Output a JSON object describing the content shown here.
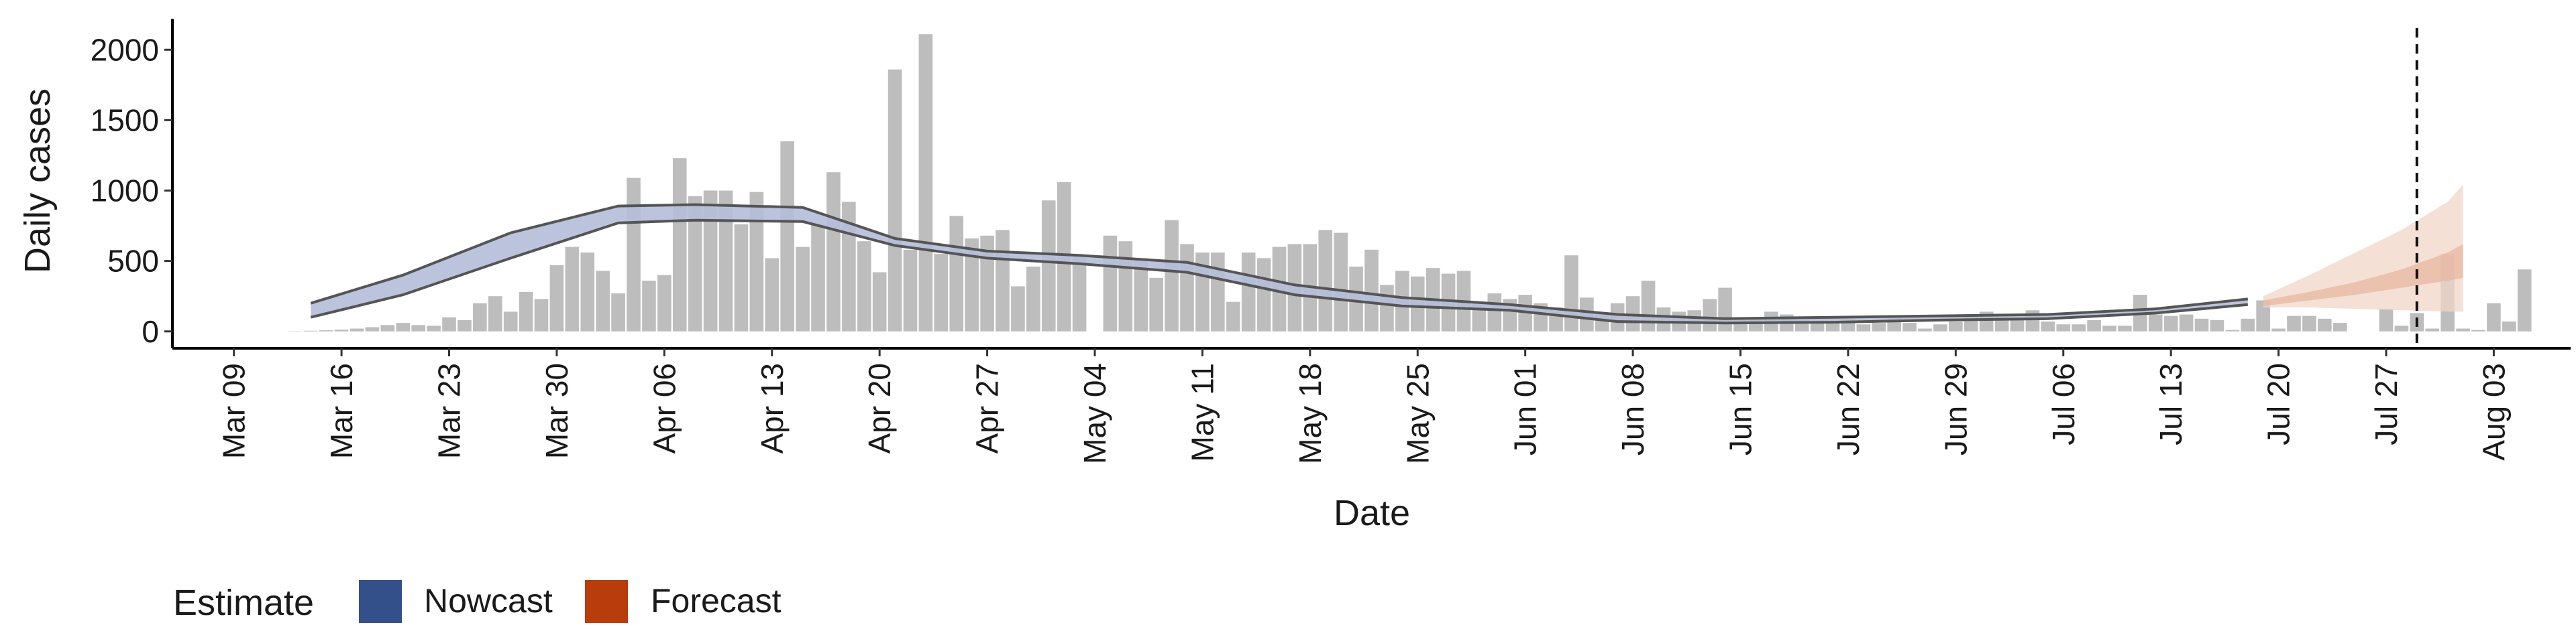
{
  "chart_data": {
    "type": "bar",
    "xlabel": "Date",
    "ylabel": "Daily cases",
    "ylim": [
      -120,
      2220
    ],
    "xlim": [
      "2020-03-05",
      "2020-08-08"
    ],
    "yticks": [
      0,
      500,
      1000,
      1500,
      2000
    ],
    "xticks": [
      "2020-03-09",
      "2020-03-16",
      "2020-03-23",
      "2020-03-30",
      "2020-04-06",
      "2020-04-13",
      "2020-04-20",
      "2020-04-27",
      "2020-05-04",
      "2020-05-11",
      "2020-05-18",
      "2020-05-25",
      "2020-06-01",
      "2020-06-08",
      "2020-06-15",
      "2020-06-22",
      "2020-06-29",
      "2020-07-06",
      "2020-07-13",
      "2020-07-20",
      "2020-07-27",
      "2020-08-03"
    ],
    "xtick_labels": [
      "Mar 09",
      "Mar 16",
      "Mar 23",
      "Mar 30",
      "Apr 06",
      "Apr 13",
      "Apr 20",
      "Apr 27",
      "May 04",
      "May 11",
      "May 18",
      "May 25",
      "Jun 01",
      "Jun 08",
      "Jun 15",
      "Jun 22",
      "Jun 29",
      "Jul 06",
      "Jul 13",
      "Jul 20",
      "Jul 27",
      "Aug 03"
    ],
    "bar_start": "2020-03-13",
    "daily_cases": [
      2,
      5,
      8,
      12,
      20,
      30,
      45,
      60,
      45,
      40,
      100,
      80,
      200,
      250,
      140,
      280,
      230,
      470,
      600,
      560,
      430,
      270,
      1090,
      360,
      400,
      1230,
      960,
      1000,
      1000,
      760,
      990,
      520,
      1350,
      600,
      760,
      1130,
      920,
      640,
      420,
      1860,
      580,
      2110,
      550,
      820,
      660,
      680,
      720,
      320,
      460,
      930,
      1060,
      540,
      0,
      680,
      640,
      520,
      380,
      790,
      620,
      560,
      560,
      210,
      560,
      520,
      600,
      620,
      620,
      720,
      700,
      460,
      580,
      330,
      430,
      390,
      450,
      410,
      430,
      210,
      270,
      230,
      260,
      200,
      170,
      540,
      240,
      130,
      200,
      250,
      360,
      170,
      140,
      150,
      230,
      310,
      100,
      90,
      140,
      120,
      80,
      60,
      70,
      90,
      50,
      60,
      110,
      60,
      20,
      50,
      70,
      110,
      140,
      100,
      80,
      150,
      70,
      50,
      50,
      80,
      40,
      40,
      260,
      120,
      110,
      120,
      90,
      80,
      10,
      90,
      220,
      20,
      110,
      110,
      90,
      60,
      0,
      0,
      160,
      40,
      130,
      20,
      550,
      20,
      10,
      200,
      70,
      440,
      0,
      0,
      0,
      0,
      0,
      0,
      0
    ],
    "series": [
      {
        "name": "Nowcast",
        "x": [
          "2020-03-14",
          "2020-03-20",
          "2020-03-27",
          "2020-04-03",
          "2020-04-08",
          "2020-04-15",
          "2020-04-21",
          "2020-04-27",
          "2020-05-03",
          "2020-05-10",
          "2020-05-17",
          "2020-05-24",
          "2020-05-31",
          "2020-06-07",
          "2020-06-14",
          "2020-06-21",
          "2020-06-28",
          "2020-07-05",
          "2020-07-12",
          "2020-07-18"
        ],
        "lower": [
          100,
          260,
          520,
          770,
          790,
          780,
          610,
          520,
          480,
          420,
          260,
          180,
          150,
          70,
          60,
          65,
          80,
          90,
          130,
          190
        ],
        "upper": [
          200,
          400,
          700,
          890,
          900,
          880,
          660,
          570,
          540,
          490,
          330,
          240,
          190,
          120,
          90,
          100,
          110,
          120,
          160,
          230
        ]
      },
      {
        "name": "Forecast",
        "x": [
          "2020-07-19",
          "2020-07-22",
          "2020-07-25",
          "2020-07-28",
          "2020-07-31",
          "2020-08-01"
        ],
        "lower": [
          170,
          170,
          160,
          150,
          140,
          140
        ],
        "mid_lower": [
          180,
          220,
          260,
          310,
          360,
          380
        ],
        "mid_upper": [
          220,
          280,
          350,
          440,
          560,
          620
        ],
        "upper": [
          250,
          400,
          560,
          720,
          920,
          1040
        ]
      }
    ],
    "vline": "2020-07-29",
    "legend": {
      "title": "Estimate",
      "position": "bottom",
      "items": [
        {
          "label": "Nowcast",
          "color": "#33508a"
        },
        {
          "label": "Forecast",
          "color": "#b83c0c"
        }
      ]
    },
    "colors": {
      "bars": "#bdbdbd",
      "nowcast_band": "#b4bed8",
      "band_outline": "#555555",
      "forecast_band": "#f2d6c8",
      "forecast_inner": "#e6b59c",
      "vline": "#111111"
    }
  }
}
